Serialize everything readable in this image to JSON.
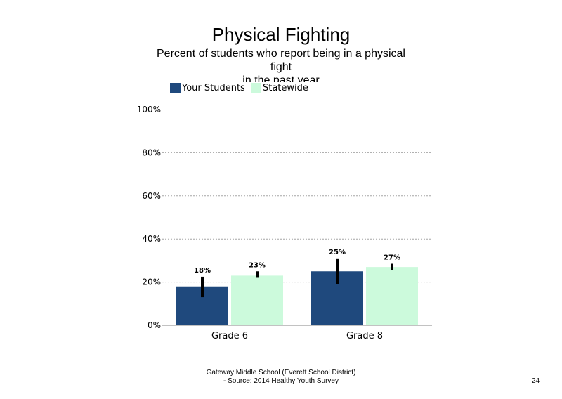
{
  "slide": {
    "title": "Physical Fighting",
    "subtitle_line1": "Percent of students  who report being in a physical",
    "subtitle_line2": "fight",
    "subtitle_line3": "in the past year",
    "footer_line1": "Gateway Middle  School  (Everett  School District)",
    "footer_line2": "- Source:  2014 Healthy  Youth Survey",
    "page_number": "24"
  },
  "chart_data": {
    "type": "bar",
    "categories": [
      "Grade 6",
      "Grade 8"
    ],
    "series": [
      {
        "name": "Your Students",
        "color": "#1f497d",
        "values": [
          18,
          25
        ],
        "labels": [
          "18%",
          "25%"
        ],
        "error": [
          [
            13,
            22.5
          ],
          [
            19,
            31
          ]
        ]
      },
      {
        "name": "Statewide",
        "color": "#ccfadc",
        "values": [
          23,
          27
        ],
        "labels": [
          "23%",
          "27%"
        ],
        "error": [
          [
            22,
            25
          ],
          [
            25.5,
            28.5
          ]
        ]
      }
    ],
    "ylim": [
      0,
      100
    ],
    "yticks": [
      0,
      20,
      40,
      60,
      80,
      100
    ],
    "ytick_labels": [
      "0%",
      "20%",
      "40%",
      "60%",
      "80%",
      "100%"
    ],
    "grid": true,
    "legend": "top-left"
  }
}
